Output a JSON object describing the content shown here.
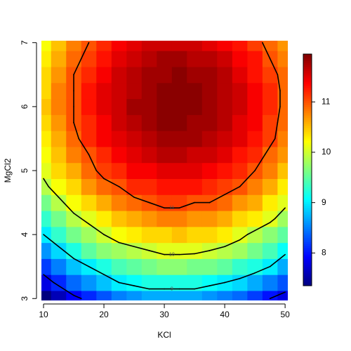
{
  "chart_data": {
    "type": "heatmap",
    "x_label": "KCl",
    "y_label": "MgCl2",
    "x": [
      10,
      12.5,
      15,
      17.5,
      20,
      22.5,
      25,
      27.5,
      30,
      32.5,
      35,
      37.5,
      40,
      42.5,
      45,
      47.5,
      50
    ],
    "y": [
      3,
      3.25,
      3.5,
      3.75,
      4,
      4.25,
      4.5,
      4.75,
      5,
      5.25,
      5.5,
      5.75,
      6,
      6.25,
      6.5,
      6.75,
      7
    ],
    "z": [
      [
        7.3,
        7.6,
        7.9,
        8.1,
        8.3,
        8.5,
        8.6,
        8.7,
        8.7,
        8.7,
        8.7,
        8.6,
        8.5,
        8.4,
        8.2,
        8.0,
        7.8
      ],
      [
        7.8,
        8.1,
        8.4,
        8.6,
        8.8,
        9.0,
        9.1,
        9.2,
        9.2,
        9.2,
        9.2,
        9.1,
        9.0,
        8.9,
        8.7,
        8.5,
        8.3
      ],
      [
        8.2,
        8.5,
        8.8,
        9.0,
        9.2,
        9.4,
        9.5,
        9.6,
        9.7,
        9.7,
        9.6,
        9.6,
        9.5,
        9.3,
        9.2,
        9.0,
        8.7
      ],
      [
        8.6,
        8.9,
        9.2,
        9.5,
        9.7,
        9.8,
        9.9,
        10.0,
        10.1,
        10.1,
        10.1,
        10.0,
        9.9,
        9.8,
        9.6,
        9.4,
        9.1
      ],
      [
        9.0,
        9.3,
        9.6,
        9.8,
        10.0,
        10.2,
        10.3,
        10.4,
        10.4,
        10.5,
        10.4,
        10.4,
        10.3,
        10.1,
        9.9,
        9.7,
        9.5
      ],
      [
        9.3,
        9.6,
        9.9,
        10.1,
        10.3,
        10.5,
        10.6,
        10.7,
        10.8,
        10.8,
        10.7,
        10.7,
        10.6,
        10.4,
        10.3,
        10.1,
        9.8
      ],
      [
        9.6,
        9.9,
        10.2,
        10.4,
        10.6,
        10.8,
        10.9,
        11.0,
        11.1,
        11.1,
        11.0,
        11.0,
        10.9,
        10.7,
        10.6,
        10.3,
        10.1
      ],
      [
        9.9,
        10.2,
        10.4,
        10.7,
        10.9,
        11.0,
        11.2,
        11.2,
        11.3,
        11.3,
        11.3,
        11.2,
        11.1,
        11.0,
        10.8,
        10.6,
        10.3
      ],
      [
        10.1,
        10.4,
        10.6,
        10.9,
        11.1,
        11.2,
        11.4,
        11.4,
        11.5,
        11.5,
        11.5,
        11.4,
        11.3,
        11.2,
        11.0,
        10.8,
        10.5
      ],
      [
        10.2,
        10.5,
        10.8,
        11.0,
        11.2,
        11.4,
        11.5,
        11.6,
        11.7,
        11.7,
        11.6,
        11.6,
        11.5,
        11.3,
        11.2,
        10.9,
        10.7
      ],
      [
        10.3,
        10.6,
        10.9,
        11.2,
        11.4,
        11.5,
        11.6,
        11.7,
        11.8,
        11.8,
        11.8,
        11.7,
        11.6,
        11.5,
        11.3,
        11.1,
        10.8
      ],
      [
        10.4,
        10.7,
        11.0,
        11.2,
        11.4,
        11.6,
        11.7,
        11.8,
        11.9,
        11.9,
        11.8,
        11.8,
        11.7,
        11.5,
        11.4,
        11.1,
        10.9
      ],
      [
        10.5,
        10.8,
        11.0,
        11.3,
        11.5,
        11.6,
        11.8,
        11.8,
        11.9,
        11.9,
        11.9,
        11.8,
        11.7,
        11.6,
        11.4,
        11.2,
        10.9
      ],
      [
        10.4,
        10.8,
        11.0,
        11.3,
        11.5,
        11.6,
        11.7,
        11.8,
        11.9,
        11.9,
        11.9,
        11.8,
        11.7,
        11.6,
        11.4,
        11.2,
        10.9
      ],
      [
        10.4,
        10.7,
        11.0,
        11.2,
        11.4,
        11.6,
        11.7,
        11.8,
        11.8,
        11.9,
        11.8,
        11.8,
        11.7,
        11.5,
        11.3,
        11.1,
        10.9
      ],
      [
        10.3,
        10.6,
        10.9,
        11.1,
        11.3,
        11.5,
        11.6,
        11.7,
        11.8,
        11.8,
        11.7,
        11.7,
        11.6,
        11.4,
        11.3,
        11.0,
        10.8
      ],
      [
        10.2,
        10.5,
        10.8,
        11.0,
        11.2,
        11.4,
        11.5,
        11.6,
        11.6,
        11.6,
        11.6,
        11.5,
        11.4,
        11.3,
        11.1,
        10.9,
        10.7
      ]
    ],
    "levels": [
      8,
      9,
      10,
      11
    ],
    "contour_color": "#000000",
    "colormap": [
      "#00007F",
      "#0000FF",
      "#007FFF",
      "#00FFFF",
      "#7FFF7F",
      "#FFFF00",
      "#FF7F00",
      "#FF0000",
      "#7F0000"
    ],
    "zlim": [
      7.35,
      11.95
    ],
    "zticks": [
      8,
      9,
      10,
      11
    ],
    "xlim": [
      9.65,
      50.45
    ],
    "ylim": [
      2.97,
      7.03
    ],
    "xticks": [
      10,
      20,
      30,
      40,
      50
    ],
    "yticks": [
      3,
      4,
      5,
      6,
      7
    ]
  }
}
